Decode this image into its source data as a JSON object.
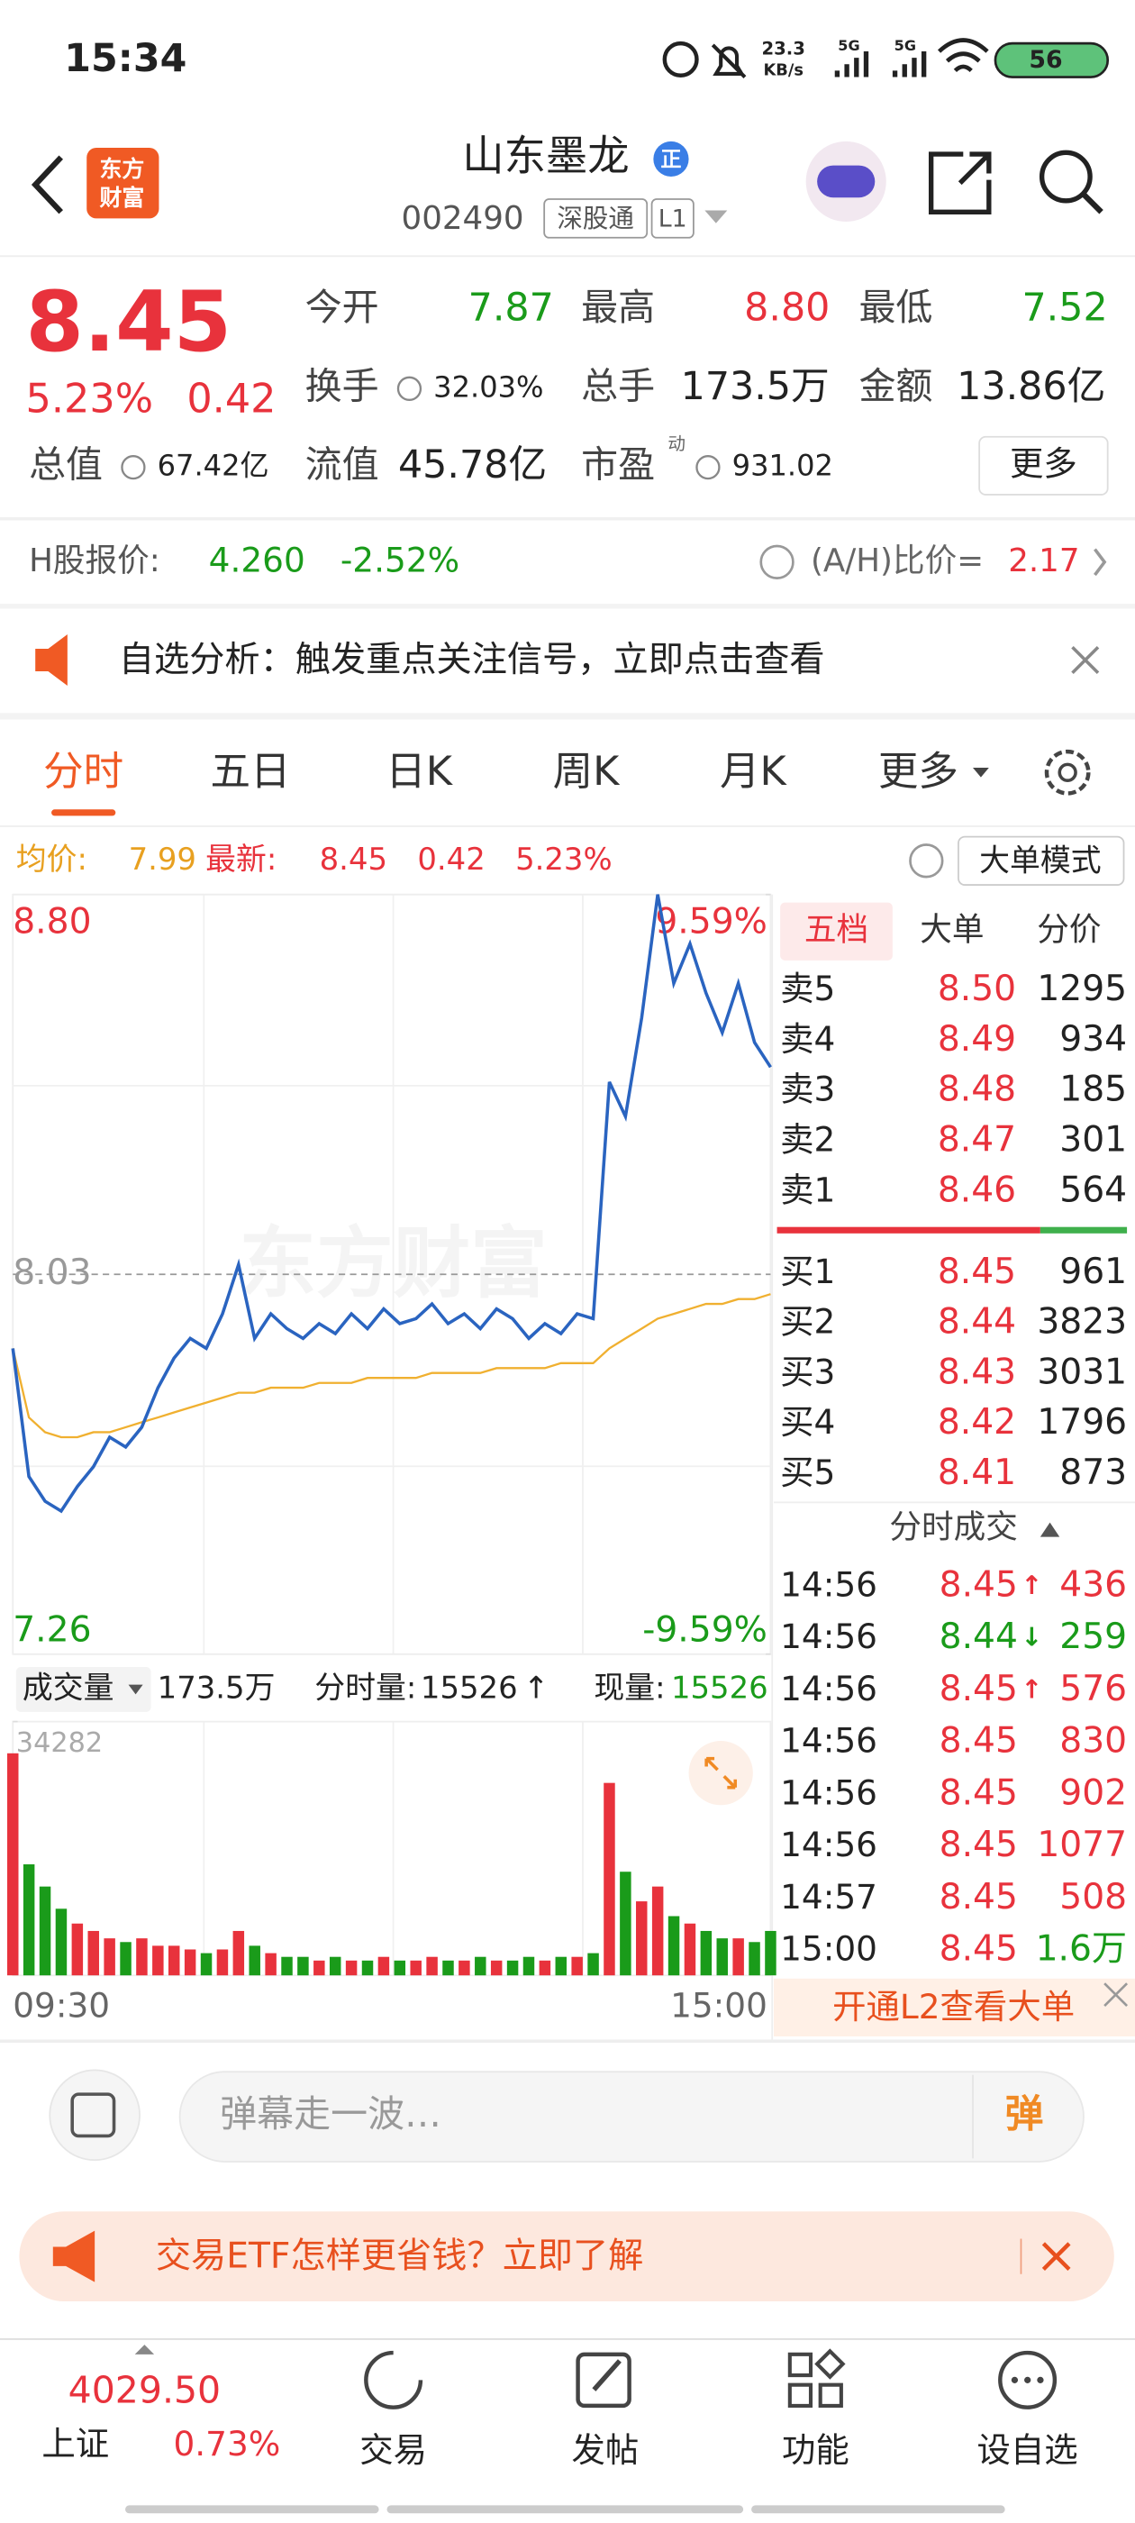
{
  "status_bar": {
    "time": "15:34",
    "speed": "23.3",
    "speed_unit": "KB/s",
    "signal_1": "5G",
    "signal_2": "5G",
    "battery": "56"
  },
  "header": {
    "logo_top": "东方",
    "logo_bottom": "财富",
    "name": "山东墨龙",
    "badge": "正",
    "code": "002490",
    "tag_connect": "深股通",
    "tag_level": "L1"
  },
  "quote": {
    "price": "8.45",
    "change_pct": "5.23%",
    "change": "0.42",
    "more": "更多",
    "stats": [
      {
        "label": "今开",
        "value": "7.87"
      },
      {
        "label": "最高",
        "value": "8.80"
      },
      {
        "label": "最低",
        "value": "7.52"
      },
      {
        "label": "换手",
        "value": "32.03%"
      },
      {
        "label": "总手",
        "value": "173.5万"
      },
      {
        "label": "金额",
        "value": "13.86亿"
      },
      {
        "label": "总值",
        "value": "67.42亿"
      },
      {
        "label": "流值",
        "value": "45.78亿"
      },
      {
        "label": "市盈",
        "value": "931.02",
        "superscript": "动"
      }
    ]
  },
  "h_share": {
    "label": "H股报价:",
    "price": "4.260",
    "change_pct": "-2.52%",
    "ratio_label": "(A/H)比价=",
    "ratio": "2.17"
  },
  "alert": {
    "text": "自选分析：触发重点关注信号，立即点击查看"
  },
  "tabs": [
    "分时",
    "五日",
    "日K",
    "周K",
    "月K",
    "更多"
  ],
  "summary": {
    "avg_label": "均价:",
    "avg": "7.99",
    "latest_label": "最新:",
    "latest": "8.45",
    "change": "0.42",
    "change_pct": "5.23%",
    "mode_button": "大单模式"
  },
  "watermark": "东方财富",
  "volume_bar": {
    "label": "成交量",
    "total": "173.5万",
    "period_label": "分时量:",
    "period": "15526",
    "period_arrow": "↑",
    "current_label": "现量:",
    "current": "15526"
  },
  "order_book": {
    "tabs": [
      "五档",
      "大单",
      "分价"
    ],
    "asks": [
      {
        "label": "卖5",
        "price": "8.50",
        "volume": "1295"
      },
      {
        "label": "卖4",
        "price": "8.49",
        "volume": "934"
      },
      {
        "label": "卖3",
        "price": "8.48",
        "volume": "185"
      },
      {
        "label": "卖2",
        "price": "8.47",
        "volume": "301"
      },
      {
        "label": "卖1",
        "price": "8.46",
        "volume": "564"
      }
    ],
    "bids": [
      {
        "label": "买1",
        "price": "8.45",
        "volume": "961"
      },
      {
        "label": "买2",
        "price": "8.44",
        "volume": "3823"
      },
      {
        "label": "买3",
        "price": "8.43",
        "volume": "3031"
      },
      {
        "label": "买4",
        "price": "8.42",
        "volume": "1796"
      },
      {
        "label": "买5",
        "price": "8.41",
        "volume": "873"
      }
    ],
    "trades_title": "分时成交",
    "trades": [
      {
        "time": "14:56",
        "price": "8.45",
        "arrow": "↑",
        "volume": "436",
        "price_color": "#e8323c",
        "volume_color": "#e8323c"
      },
      {
        "time": "14:56",
        "price": "8.44",
        "arrow": "↓",
        "volume": "259",
        "price_color": "#1a9b1a",
        "volume_color": "#1a9b1a"
      },
      {
        "time": "14:56",
        "price": "8.45",
        "arrow": "↑",
        "volume": "576",
        "price_color": "#e8323c",
        "volume_color": "#e8323c"
      },
      {
        "time": "14:56",
        "price": "8.45",
        "volume": "830",
        "price_color": "#e8323c",
        "volume_color": "#e8323c"
      },
      {
        "time": "14:56",
        "price": "8.45",
        "volume": "902",
        "price_color": "#e8323c",
        "volume_color": "#e8323c"
      },
      {
        "time": "14:56",
        "price": "8.45",
        "volume": "1077",
        "price_color": "#e8323c",
        "volume_color": "#e8323c"
      },
      {
        "time": "14:57",
        "price": "8.45",
        "volume": "508",
        "price_color": "#e8323c",
        "volume_color": "#e8323c"
      },
      {
        "time": "15:00",
        "price": "8.45",
        "volume": "1.6万",
        "price_color": "#e8323c",
        "volume_color": "#1a9b1a"
      }
    ],
    "l2_banner": "开通L2查看大单"
  },
  "comment": {
    "placeholder": "弹幕走一波…",
    "button": "弹"
  },
  "ad": {
    "text": "交易ETF怎样更省钱？立即了解"
  },
  "nav": {
    "index_value": "4029.50",
    "index_name": "上证",
    "index_change": "0.73%",
    "items": [
      "交易",
      "发帖",
      "功能",
      "设自选"
    ]
  },
  "chart_data": [
    {
      "type": "line",
      "categories": [
        "09:30",
        null,
        null,
        null,
        null,
        null,
        null,
        null,
        null,
        null,
        null,
        null,
        null,
        null,
        null,
        null,
        null,
        null,
        null,
        null,
        null,
        null,
        null,
        null,
        null,
        null,
        null,
        null,
        null,
        null,
        null,
        null,
        null,
        null,
        null,
        null,
        null,
        null,
        null,
        null,
        null,
        null,
        null,
        null,
        null,
        null,
        null,
        "15:00"
      ],
      "series": [
        {
          "color": "#2a64c0",
          "values": [
            7.88,
            7.62,
            7.57,
            7.55,
            7.6,
            7.64,
            7.7,
            7.68,
            7.72,
            7.8,
            7.86,
            7.9,
            7.88,
            7.95,
            8.05,
            7.9,
            7.95,
            7.92,
            7.9,
            7.93,
            7.91,
            7.95,
            7.92,
            7.96,
            7.93,
            7.94,
            7.97,
            7.93,
            7.95,
            7.92,
            7.96,
            7.94,
            7.9,
            7.93,
            7.91,
            7.95,
            7.94,
            8.42,
            8.35,
            8.55,
            8.8,
            8.62,
            8.7,
            8.6,
            8.52,
            8.62,
            8.5,
            8.45
          ]
        },
        {
          "color": "#f0b030",
          "values": [
            7.88,
            7.74,
            7.71,
            7.7,
            7.7,
            7.71,
            7.71,
            7.72,
            7.73,
            7.74,
            7.75,
            7.76,
            7.77,
            7.78,
            7.79,
            7.79,
            7.8,
            7.8,
            7.8,
            7.81,
            7.81,
            7.81,
            7.82,
            7.82,
            7.82,
            7.82,
            7.83,
            7.83,
            7.83,
            7.83,
            7.84,
            7.84,
            7.84,
            7.84,
            7.85,
            7.85,
            7.85,
            7.88,
            7.9,
            7.92,
            7.94,
            7.95,
            7.96,
            7.97,
            7.97,
            7.98,
            7.98,
            7.99
          ]
        }
      ],
      "ylim": [
        7.26,
        8.8
      ],
      "yticks": [
        {
          "value": 8.8,
          "label": "8.80"
        },
        8.03,
        7.26
      ],
      "y2lim": [
        -9.59,
        9.59
      ],
      "y2ticks": [
        {
          "value": 9.59,
          "label": "9.59%"
        },
        {
          "value": -9.59,
          "label": "-9.59%"
        }
      ]
    },
    {
      "type": "bar",
      "up_color": "#e8323c",
      "down_color": "#1a9b1a",
      "values": [
        30000,
        15000,
        12000,
        9000,
        7000,
        6000,
        5000,
        4500,
        5000,
        4000,
        4000,
        3500,
        3000,
        3500,
        6000,
        4000,
        3000,
        2500,
        2500,
        2000,
        2500,
        2000,
        2000,
        2500,
        2000,
        2000,
        2500,
        2000,
        2000,
        2500,
        2000,
        2000,
        2500,
        2000,
        2500,
        2500,
        3000,
        26000,
        14000,
        10000,
        12000,
        8000,
        7000,
        6000,
        5000,
        5000,
        4500,
        6000
      ],
      "ylim": [
        0,
        34282
      ],
      "yticks": [
        34282
      ]
    }
  ]
}
